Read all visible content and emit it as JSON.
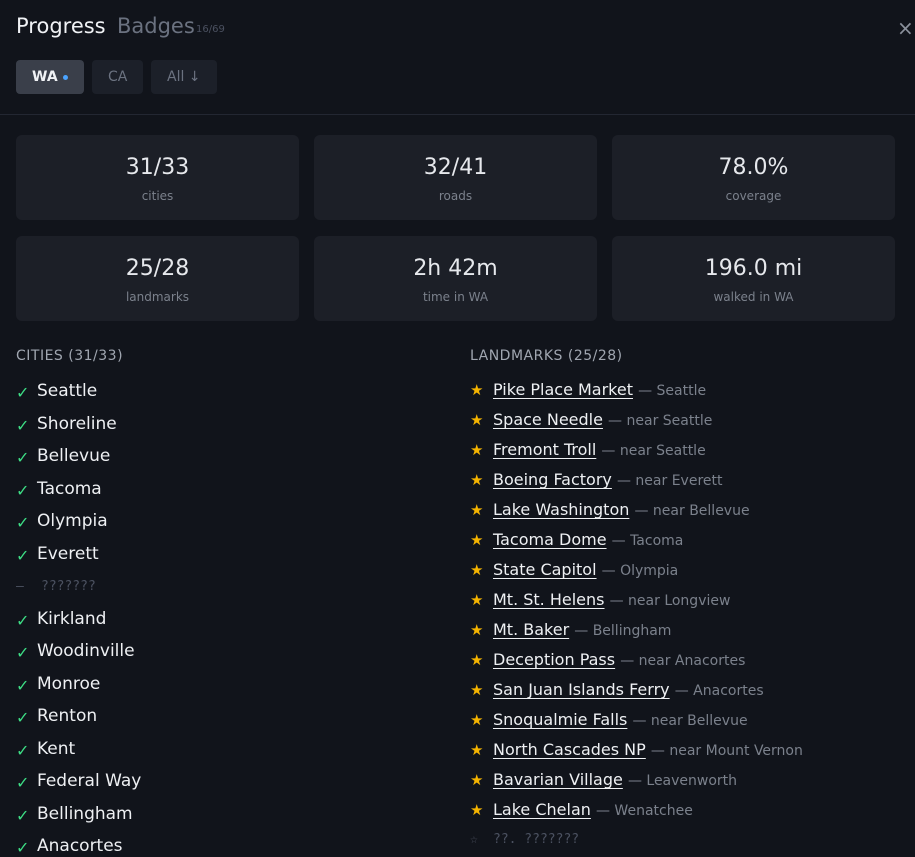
{
  "header": {
    "title": "Progress",
    "tab": "Badges",
    "badge_count": "16/69",
    "close": "×"
  },
  "filters": [
    {
      "label": "WA",
      "active": true
    },
    {
      "label": "CA",
      "active": false
    },
    {
      "label": "All ↓",
      "active": false
    }
  ],
  "stats": [
    {
      "value": "31/33",
      "label": "cities"
    },
    {
      "value": "32/41",
      "label": "roads"
    },
    {
      "value": "78.0%",
      "label": "coverage"
    },
    {
      "value": "25/28",
      "label": "landmarks"
    },
    {
      "value": "2h 42m",
      "label": "time in WA"
    },
    {
      "value": "196.0 mi",
      "label": "walked in WA"
    }
  ],
  "cities": {
    "heading": "CITIES (31/33)",
    "items": [
      {
        "name": "Seattle",
        "visited": true
      },
      {
        "name": "Shoreline",
        "visited": true
      },
      {
        "name": "Bellevue",
        "visited": true
      },
      {
        "name": "Tacoma",
        "visited": true
      },
      {
        "name": "Olympia",
        "visited": true
      },
      {
        "name": "Everett",
        "visited": true
      },
      {
        "name": "???????",
        "visited": false
      },
      {
        "name": "Kirkland",
        "visited": true
      },
      {
        "name": "Woodinville",
        "visited": true
      },
      {
        "name": "Monroe",
        "visited": true
      },
      {
        "name": "Renton",
        "visited": true
      },
      {
        "name": "Kent",
        "visited": true
      },
      {
        "name": "Federal Way",
        "visited": true
      },
      {
        "name": "Bellingham",
        "visited": true
      },
      {
        "name": "Anacortes",
        "visited": true
      }
    ]
  },
  "landmarks": {
    "heading": "LANDMARKS (25/28)",
    "items": [
      {
        "name": "Pike Place Market",
        "location": "— Seattle",
        "found": true
      },
      {
        "name": "Space Needle",
        "location": "— near Seattle",
        "found": true
      },
      {
        "name": "Fremont Troll",
        "location": "— near Seattle",
        "found": true
      },
      {
        "name": "Boeing Factory",
        "location": "— near Everett",
        "found": true
      },
      {
        "name": "Lake Washington",
        "location": "— near Bellevue",
        "found": true
      },
      {
        "name": "Tacoma Dome",
        "location": "— Tacoma",
        "found": true
      },
      {
        "name": "State Capitol",
        "location": "— Olympia",
        "found": true
      },
      {
        "name": "Mt. St. Helens",
        "location": "— near Longview",
        "found": true
      },
      {
        "name": "Mt. Baker",
        "location": "— Bellingham",
        "found": true
      },
      {
        "name": "Deception Pass",
        "location": "— near Anacortes",
        "found": true
      },
      {
        "name": "San Juan Islands Ferry",
        "location": "— Anacortes",
        "found": true
      },
      {
        "name": "Snoqualmie Falls",
        "location": "— near Bellevue",
        "found": true
      },
      {
        "name": "North Cascades NP",
        "location": "— near Mount Vernon",
        "found": true
      },
      {
        "name": "Bavarian Village",
        "location": "— Leavenworth",
        "found": true
      },
      {
        "name": "Lake Chelan",
        "location": "— Wenatchee",
        "found": true
      },
      {
        "name": "??. ???????",
        "found": false
      }
    ]
  }
}
